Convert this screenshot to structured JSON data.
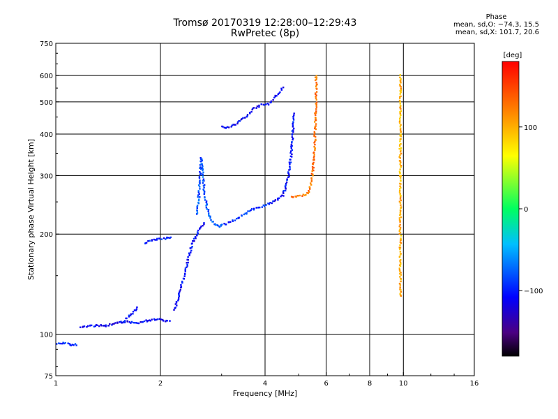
{
  "header": {
    "title": "Tromsø 20170319 12:28:00–12:29:43",
    "subtitle": "RwPretec (8p)"
  },
  "phase_stats": {
    "heading": "Phase",
    "line_o": "mean, sd,O: −74.3, 15.5",
    "line_x": "mean, sd,X: 101.7, 20.6"
  },
  "colorbar": {
    "unit_label": "[deg]",
    "range": [
      -180,
      180
    ],
    "ticks": [
      "100",
      "0",
      "−100"
    ],
    "tick_values": [
      100,
      0,
      -100
    ]
  },
  "chart_data": {
    "type": "scatter",
    "xlabel": "Frequency [MHz]",
    "ylabel": "Stationary phase Virtual Height [km]",
    "x_scale": "log",
    "y_scale": "log",
    "xlim": [
      1,
      16
    ],
    "ylim": [
      75,
      750
    ],
    "x_ticks": [
      {
        "v": 1,
        "t": "1"
      },
      {
        "v": 2,
        "t": "2"
      },
      {
        "v": 4,
        "t": "4"
      },
      {
        "v": 6,
        "t": "6"
      },
      {
        "v": 8,
        "t": "8"
      },
      {
        "v": 10,
        "t": "10"
      },
      {
        "v": 16,
        "t": "16"
      }
    ],
    "x_grid": [
      2,
      4,
      6,
      8,
      10
    ],
    "y_ticks": [
      {
        "v": 75,
        "t": "75"
      },
      {
        "v": 100,
        "t": "100"
      },
      {
        "v": 200,
        "t": "200"
      },
      {
        "v": 300,
        "t": "300"
      },
      {
        "v": 400,
        "t": "400"
      },
      {
        "v": 500,
        "t": "500"
      },
      {
        "v": 600,
        "t": "600"
      },
      {
        "v": 750,
        "t": "750"
      }
    ],
    "y_grid": [
      100,
      200,
      300,
      400,
      500,
      600
    ],
    "grid": true,
    "color_encoding": "phase [deg]",
    "traces": [
      {
        "phase": -95,
        "points": [
          [
            1.0,
            93
          ],
          [
            1.05,
            94
          ],
          [
            1.1,
            93
          ],
          [
            1.15,
            93
          ]
        ]
      },
      {
        "phase": -108,
        "points": [
          [
            1.18,
            105
          ],
          [
            1.25,
            106
          ],
          [
            1.33,
            106
          ],
          [
            1.4,
            106
          ],
          [
            1.5,
            108
          ],
          [
            1.6,
            109
          ],
          [
            1.7,
            108
          ],
          [
            1.85,
            110
          ],
          [
            1.95,
            111
          ],
          [
            2.05,
            110
          ],
          [
            2.12,
            109
          ]
        ]
      },
      {
        "phase": -105,
        "points": [
          [
            1.55,
            108
          ],
          [
            1.65,
            115
          ],
          [
            1.72,
            120
          ]
        ]
      },
      {
        "phase": -100,
        "points": [
          [
            1.8,
            188
          ],
          [
            1.9,
            192
          ],
          [
            2.0,
            193
          ],
          [
            2.1,
            195
          ],
          [
            2.15,
            196
          ]
        ]
      },
      {
        "phase": -104,
        "points": [
          [
            2.2,
            118
          ],
          [
            2.28,
            135
          ],
          [
            2.38,
            160
          ],
          [
            2.48,
            190
          ],
          [
            2.58,
            205
          ],
          [
            2.68,
            215
          ]
        ]
      },
      {
        "phase": -82,
        "points": [
          [
            2.55,
            230
          ],
          [
            2.58,
            260
          ],
          [
            2.6,
            300
          ],
          [
            2.62,
            340
          ],
          [
            2.65,
            300
          ],
          [
            2.68,
            265
          ],
          [
            2.72,
            240
          ],
          [
            2.78,
            225
          ],
          [
            2.85,
            215
          ],
          [
            2.95,
            210
          ]
        ]
      },
      {
        "phase": -92,
        "points": [
          [
            2.95,
            212
          ],
          [
            3.1,
            215
          ],
          [
            3.3,
            222
          ],
          [
            3.5,
            230
          ],
          [
            3.7,
            238
          ],
          [
            3.85,
            240
          ],
          [
            4.0,
            245
          ]
        ]
      },
      {
        "phase": -112,
        "points": [
          [
            3.0,
            420
          ],
          [
            3.1,
            418
          ],
          [
            3.3,
            428
          ],
          [
            3.5,
            448
          ],
          [
            3.7,
            475
          ],
          [
            3.9,
            490
          ],
          [
            4.1,
            492
          ],
          [
            4.3,
            520
          ],
          [
            4.5,
            550
          ]
        ]
      },
      {
        "phase": -102,
        "points": [
          [
            4.05,
            245
          ],
          [
            4.3,
            252
          ],
          [
            4.5,
            262
          ],
          [
            4.65,
            290
          ],
          [
            4.75,
            340
          ],
          [
            4.8,
            400
          ],
          [
            4.85,
            460
          ]
        ]
      },
      {
        "phase": 128,
        "points": [
          [
            4.75,
            258
          ],
          [
            5.0,
            260
          ],
          [
            5.2,
            262
          ],
          [
            5.35,
            268
          ],
          [
            5.45,
            290
          ],
          [
            5.5,
            320
          ],
          [
            5.55,
            360
          ],
          [
            5.58,
            420
          ],
          [
            5.6,
            480
          ],
          [
            5.62,
            550
          ],
          [
            5.6,
            600
          ]
        ]
      },
      {
        "phase": 100,
        "points": [
          [
            9.8,
            600
          ],
          [
            9.8,
            500
          ],
          [
            9.8,
            400
          ],
          [
            9.8,
            320
          ],
          [
            9.8,
            260
          ],
          [
            9.8,
            210
          ],
          [
            9.8,
            170
          ],
          [
            9.8,
            130
          ]
        ]
      }
    ]
  }
}
